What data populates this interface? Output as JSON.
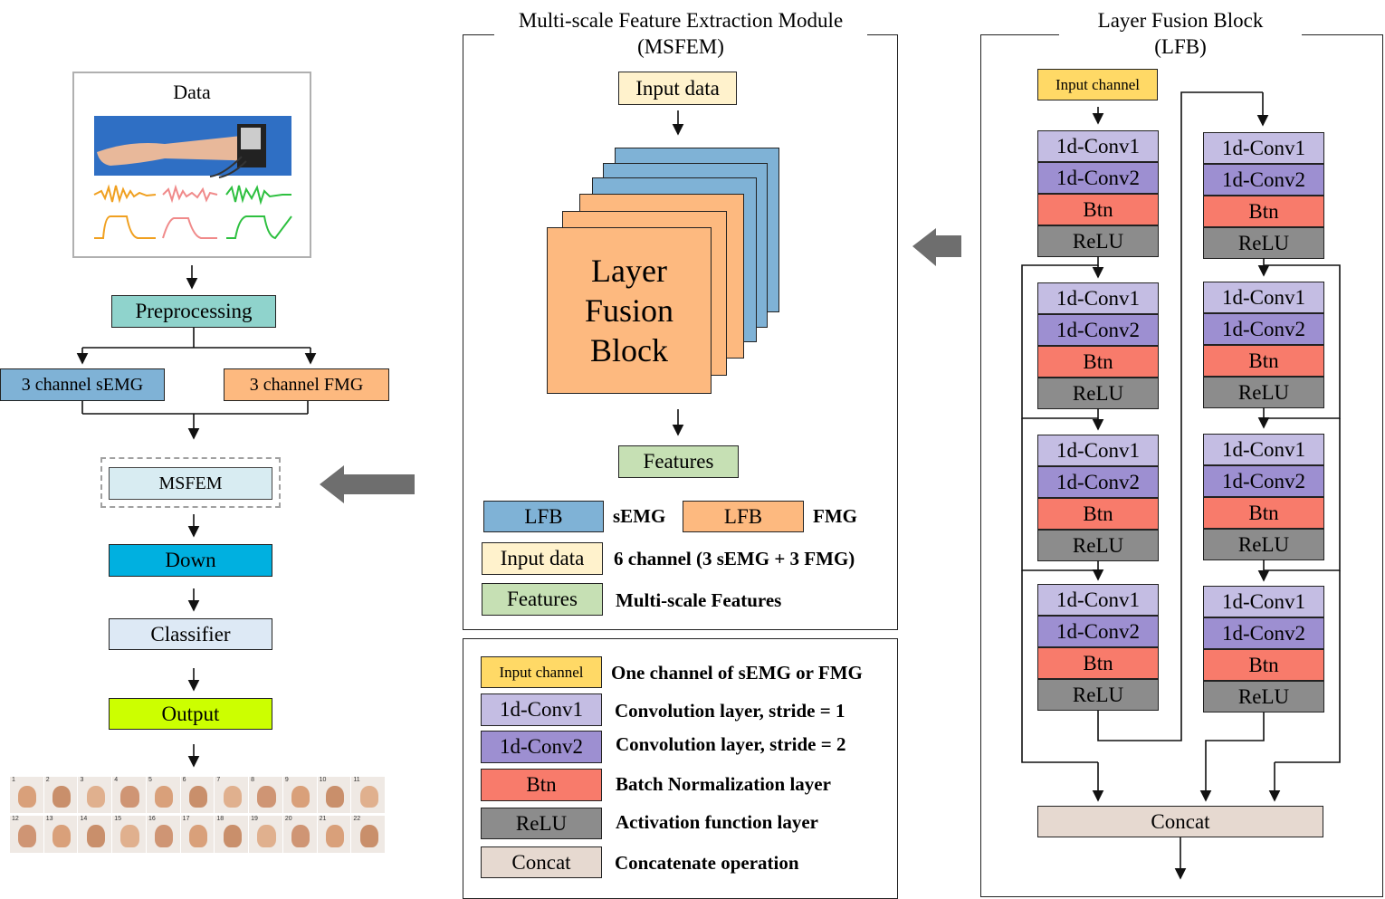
{
  "colors": {
    "preprocessing": "#8fd3cc",
    "semg": "#7fb2d6",
    "fmg": "#fdb97f",
    "msfem": "#d8ecf2",
    "down": "#00b0e0",
    "classifier": "#dde9f5",
    "output": "#ccff00",
    "input": "#fff2cc",
    "input_channel": "#ffd966",
    "features": "#c6e0b4",
    "conv1": "#c4bde3",
    "conv2": "#9d8fd1",
    "btn": "#f87b6b",
    "relu": "#8c8c8c",
    "concat": "#e6d9d0",
    "arrow_gray": "#6e6e6e"
  },
  "pipeline": {
    "data_title": "Data",
    "preprocessing": "Preprocessing",
    "semg": "3 channel sEMG",
    "fmg": "3 channel FMG",
    "msfem": "MSFEM",
    "down": "Down",
    "classifier": "Classifier",
    "output": "Output",
    "gesture_numbers": [
      "1",
      "2",
      "3",
      "4",
      "5",
      "6",
      "7",
      "8",
      "9",
      "10",
      "11",
      "12",
      "13",
      "14",
      "15",
      "16",
      "17",
      "18",
      "19",
      "20",
      "21",
      "22"
    ]
  },
  "msfem_module": {
    "title_line1": "Multi-scale Feature Extraction Module",
    "title_line2": "(MSFEM)",
    "input": "Input data",
    "block_line1": "Layer",
    "block_line2": "Fusion",
    "block_line3": "Block",
    "features": "Features",
    "legend": {
      "lfb1": "LFB",
      "semg": "sEMG",
      "lfb2": "LFB",
      "fmg": "FMG",
      "input": "Input data",
      "input_desc": "6 channel (3 sEMG + 3 FMG)",
      "features": "Features",
      "features_desc": "Multi-scale Features"
    }
  },
  "legend_box": {
    "input_channel": "Input channel",
    "input_channel_desc": "One channel of sEMG or FMG",
    "conv1": "1d-Conv1",
    "conv1_desc": "Convolution layer, stride = 1",
    "conv2": "1d-Conv2",
    "conv2_desc": "Convolution layer, stride = 2",
    "btn": "Btn",
    "btn_desc": "Batch Normalization layer",
    "relu": "ReLU",
    "relu_desc": "Activation function layer",
    "concat": "Concat",
    "concat_desc": "Concatenate operation"
  },
  "lfb": {
    "title_line1": "Layer Fusion Block",
    "title_line2": "(LFB)",
    "input_channel": "Input channel",
    "conv1": "1d-Conv1",
    "conv2": "1d-Conv2",
    "btn": "Btn",
    "relu": "ReLU",
    "concat": "Concat"
  }
}
